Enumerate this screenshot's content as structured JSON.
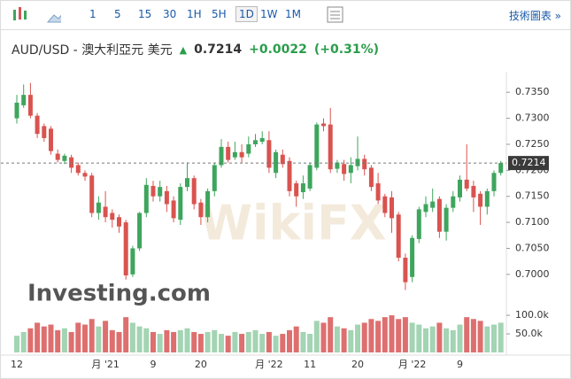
{
  "toolbar": {
    "intervals": [
      "1",
      "5",
      "15",
      "30",
      "1H",
      "5H",
      "1D",
      "1W",
      "1M"
    ],
    "selected": "1D",
    "link": "技術圖表 »"
  },
  "chart_data": {
    "type": "candlestick",
    "title": "AUD/USD - 澳大利亞元 美元",
    "price": 0.7214,
    "change": "+0.0022",
    "change_pct": "(+0.31%)",
    "watermark": "WikiFX",
    "logo": "Investing.com",
    "categories": [
      "12",
      null,
      null,
      null,
      null,
      null,
      null,
      null,
      null,
      null,
      null,
      null,
      null,
      "月 '21",
      null,
      null,
      null,
      null,
      null,
      null,
      "9",
      null,
      null,
      null,
      null,
      null,
      null,
      "20",
      null,
      null,
      null,
      null,
      null,
      null,
      null,
      null,
      null,
      "月 '22",
      null,
      null,
      null,
      null,
      null,
      "11",
      null,
      null,
      null,
      null,
      null,
      null,
      "20",
      null,
      null,
      null,
      null,
      null,
      null,
      null,
      "月 '22",
      null,
      null,
      null,
      null,
      null,
      null,
      "9",
      null,
      null,
      null,
      null,
      null,
      null
    ],
    "open": [
      0.73,
      0.7325,
      0.7345,
      0.7305,
      0.7285,
      0.728,
      0.7232,
      0.7218,
      0.7225,
      0.721,
      0.7195,
      0.719,
      0.7118,
      0.713,
      0.7118,
      0.711,
      0.71,
      0.7,
      0.705,
      0.7118,
      0.717,
      0.715,
      0.716,
      0.7142,
      0.7105,
      0.7168,
      0.7185,
      0.7138,
      0.711,
      0.716,
      0.721,
      0.7245,
      0.7225,
      0.7235,
      0.7232,
      0.725,
      0.7255,
      0.7258,
      0.7195,
      0.723,
      0.7218,
      0.7175,
      0.7158,
      0.7165,
      0.7205,
      0.729,
      0.7288,
      0.7203,
      0.7212,
      0.7195,
      0.7208,
      0.7222,
      0.7205,
      0.7175,
      0.715,
      0.7148,
      0.7115,
      0.7032,
      0.6995,
      0.7068,
      0.712,
      0.7128,
      0.7145,
      0.7082,
      0.7128,
      0.7148,
      0.7182,
      0.717,
      0.7155,
      0.713,
      0.716,
      0.7195
    ],
    "high": [
      0.7345,
      0.7365,
      0.7368,
      0.731,
      0.729,
      0.7285,
      0.724,
      0.7232,
      0.723,
      0.7215,
      0.72,
      0.7195,
      0.715,
      0.716,
      0.7125,
      0.7115,
      0.7105,
      0.7055,
      0.712,
      0.7185,
      0.718,
      0.718,
      0.717,
      0.715,
      0.7175,
      0.7215,
      0.719,
      0.7145,
      0.7165,
      0.7215,
      0.726,
      0.7255,
      0.7255,
      0.725,
      0.7265,
      0.727,
      0.7275,
      0.7275,
      0.724,
      0.724,
      0.7225,
      0.718,
      0.719,
      0.7215,
      0.7292,
      0.73,
      0.732,
      0.722,
      0.722,
      0.7225,
      0.7265,
      0.723,
      0.721,
      0.7195,
      0.7155,
      0.716,
      0.712,
      0.704,
      0.7075,
      0.713,
      0.715,
      0.7165,
      0.715,
      0.7135,
      0.716,
      0.719,
      0.725,
      0.718,
      0.716,
      0.7165,
      0.72,
      0.7218
    ],
    "low": [
      0.729,
      0.732,
      0.73,
      0.7262,
      0.7255,
      0.723,
      0.7215,
      0.7212,
      0.7195,
      0.719,
      0.718,
      0.711,
      0.7105,
      0.71,
      0.709,
      0.708,
      0.699,
      0.6995,
      0.7045,
      0.711,
      0.714,
      0.714,
      0.712,
      0.71,
      0.7095,
      0.716,
      0.7125,
      0.7095,
      0.71,
      0.715,
      0.7205,
      0.7215,
      0.722,
      0.7215,
      0.7225,
      0.7245,
      0.725,
      0.7195,
      0.7185,
      0.7205,
      0.715,
      0.713,
      0.7145,
      0.716,
      0.72,
      0.7275,
      0.7195,
      0.7195,
      0.718,
      0.7175,
      0.72,
      0.719,
      0.716,
      0.7135,
      0.711,
      0.708,
      0.7025,
      0.697,
      0.6985,
      0.706,
      0.711,
      0.712,
      0.707,
      0.7065,
      0.712,
      0.714,
      0.716,
      0.712,
      0.7095,
      0.7115,
      0.715,
      0.719
    ],
    "close": [
      0.733,
      0.7345,
      0.7305,
      0.727,
      0.7262,
      0.7237,
      0.722,
      0.7228,
      0.7205,
      0.7195,
      0.7188,
      0.7118,
      0.7138,
      0.711,
      0.7105,
      0.7092,
      0.6998,
      0.705,
      0.7118,
      0.7172,
      0.715,
      0.7168,
      0.7135,
      0.7108,
      0.7168,
      0.7185,
      0.7135,
      0.711,
      0.716,
      0.721,
      0.7245,
      0.722,
      0.7235,
      0.7225,
      0.725,
      0.7258,
      0.7262,
      0.7205,
      0.7235,
      0.7212,
      0.716,
      0.715,
      0.7175,
      0.721,
      0.7288,
      0.7285,
      0.7202,
      0.7215,
      0.7193,
      0.721,
      0.7222,
      0.7202,
      0.7168,
      0.7142,
      0.7118,
      0.7108,
      0.7032,
      0.6985,
      0.707,
      0.7125,
      0.7135,
      0.714,
      0.7082,
      0.7128,
      0.715,
      0.7182,
      0.7165,
      0.7148,
      0.713,
      0.716,
      0.7195,
      0.7214
    ],
    "volume": [
      45000,
      55000,
      65000,
      80000,
      70000,
      75000,
      60000,
      65000,
      55000,
      80000,
      75000,
      90000,
      70000,
      85000,
      60000,
      55000,
      95000,
      80000,
      70000,
      65000,
      55000,
      50000,
      60000,
      55000,
      60000,
      65000,
      55000,
      50000,
      55000,
      60000,
      50000,
      45000,
      55000,
      50000,
      55000,
      60000,
      50000,
      55000,
      45000,
      50000,
      60000,
      70000,
      55000,
      50000,
      85000,
      80000,
      95000,
      70000,
      65000,
      60000,
      75000,
      80000,
      90000,
      85000,
      95000,
      100000,
      90000,
      95000,
      80000,
      75000,
      65000,
      70000,
      80000,
      65000,
      60000,
      75000,
      95000,
      90000,
      85000,
      70000,
      75000,
      80000
    ],
    "ylim": [
      0.6964,
      0.7381
    ],
    "yticks": [
      {
        "value": 0.7,
        "label": "0.7000"
      },
      {
        "value": 0.705,
        "label": "0.7050"
      },
      {
        "value": 0.71,
        "label": "0.7100"
      },
      {
        "value": 0.715,
        "label": "0.7150"
      },
      {
        "value": 0.72,
        "label": "0.7200"
      },
      {
        "value": 0.725,
        "label": "0.7250"
      },
      {
        "value": 0.73,
        "label": "0.7300"
      },
      {
        "value": 0.735,
        "label": "0.7350"
      }
    ],
    "y2lim": [
      0,
      124000
    ],
    "y2ticks": [
      {
        "value": 50000,
        "label": "50.0k"
      },
      {
        "value": 100000,
        "label": "100.0k"
      }
    ],
    "up_color": "#3ea55d",
    "down_color": "#d9534f",
    "volume_up_color": "#a3d4b3",
    "volume_down_color": "#de6f6f"
  }
}
